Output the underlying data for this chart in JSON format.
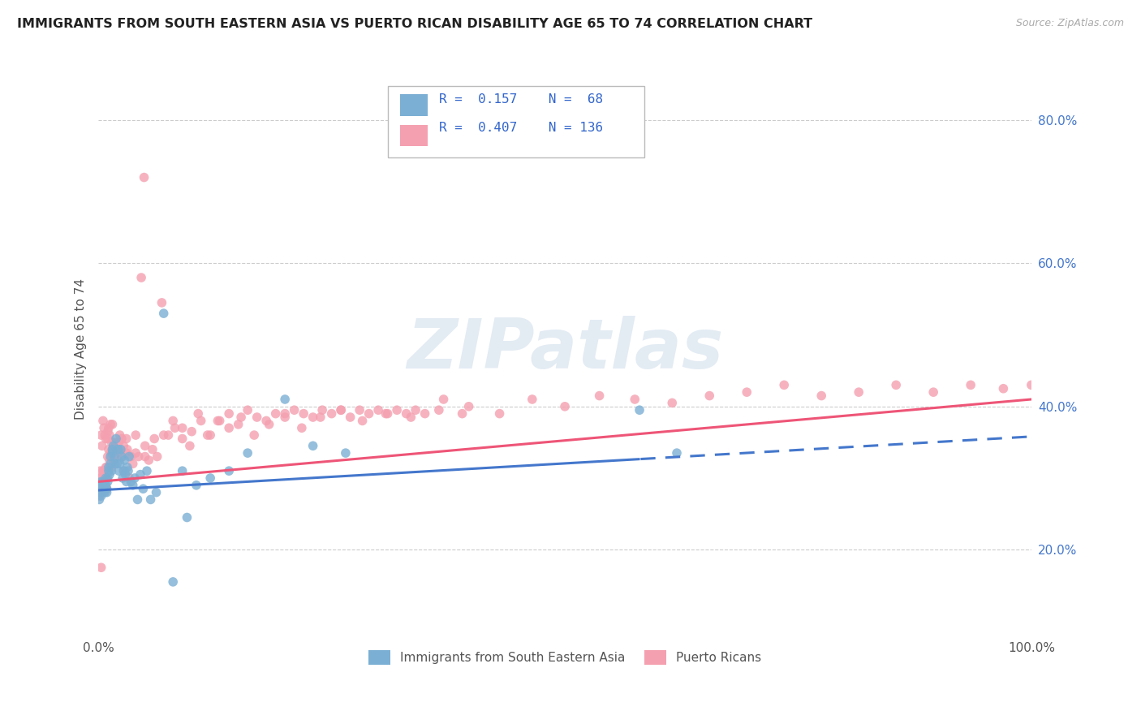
{
  "title": "IMMIGRANTS FROM SOUTH EASTERN ASIA VS PUERTO RICAN DISABILITY AGE 65 TO 74 CORRELATION CHART",
  "source": "Source: ZipAtlas.com",
  "ylabel": "Disability Age 65 to 74",
  "legend1_label": "Immigrants from South Eastern Asia",
  "legend2_label": "Puerto Ricans",
  "r1": 0.157,
  "n1": 68,
  "r2": 0.407,
  "n2": 136,
  "color_blue": "#7BAFD4",
  "color_pink": "#F4A0B0",
  "color_blue_line": "#4477CC",
  "color_pink_line": "#EE5577",
  "watermark": "ZIPatlas",
  "xlim": [
    0.0,
    1.0
  ],
  "ylim": [
    0.08,
    0.88
  ],
  "yticks": [
    0.2,
    0.4,
    0.6,
    0.8
  ],
  "ytick_labels": [
    "20.0%",
    "40.0%",
    "60.0%",
    "80.0%"
  ],
  "blue_line_start": 0.0,
  "blue_line_split": 0.58,
  "blue_line_end": 1.0,
  "blue_intercept": 0.283,
  "blue_slope": 0.075,
  "pink_intercept": 0.295,
  "pink_slope": 0.115,
  "blue_scatter_x": [
    0.001,
    0.001,
    0.002,
    0.002,
    0.003,
    0.003,
    0.004,
    0.004,
    0.005,
    0.005,
    0.006,
    0.006,
    0.007,
    0.007,
    0.008,
    0.008,
    0.009,
    0.009,
    0.01,
    0.01,
    0.011,
    0.011,
    0.012,
    0.013,
    0.013,
    0.014,
    0.015,
    0.015,
    0.016,
    0.017,
    0.018,
    0.019,
    0.02,
    0.021,
    0.022,
    0.023,
    0.024,
    0.025,
    0.026,
    0.027,
    0.028,
    0.029,
    0.03,
    0.031,
    0.032,
    0.033,
    0.035,
    0.037,
    0.039,
    0.042,
    0.045,
    0.048,
    0.052,
    0.056,
    0.062,
    0.07,
    0.08,
    0.09,
    0.105,
    0.12,
    0.14,
    0.16,
    0.2,
    0.23,
    0.265,
    0.58,
    0.62,
    0.095
  ],
  "blue_scatter_y": [
    0.27,
    0.28,
    0.29,
    0.285,
    0.295,
    0.275,
    0.285,
    0.29,
    0.28,
    0.295,
    0.285,
    0.29,
    0.28,
    0.295,
    0.29,
    0.3,
    0.28,
    0.285,
    0.295,
    0.3,
    0.315,
    0.31,
    0.305,
    0.32,
    0.33,
    0.31,
    0.34,
    0.335,
    0.345,
    0.33,
    0.32,
    0.355,
    0.32,
    0.34,
    0.31,
    0.32,
    0.34,
    0.33,
    0.3,
    0.31,
    0.325,
    0.305,
    0.295,
    0.315,
    0.31,
    0.33,
    0.295,
    0.29,
    0.3,
    0.27,
    0.305,
    0.285,
    0.31,
    0.27,
    0.28,
    0.53,
    0.155,
    0.31,
    0.29,
    0.3,
    0.31,
    0.335,
    0.41,
    0.345,
    0.335,
    0.395,
    0.335,
    0.245
  ],
  "pink_scatter_x": [
    0.001,
    0.001,
    0.002,
    0.002,
    0.002,
    0.003,
    0.003,
    0.003,
    0.004,
    0.004,
    0.004,
    0.005,
    0.005,
    0.005,
    0.006,
    0.006,
    0.006,
    0.007,
    0.007,
    0.007,
    0.008,
    0.008,
    0.008,
    0.009,
    0.009,
    0.01,
    0.01,
    0.011,
    0.011,
    0.012,
    0.012,
    0.013,
    0.013,
    0.014,
    0.014,
    0.015,
    0.015,
    0.016,
    0.017,
    0.018,
    0.019,
    0.02,
    0.021,
    0.022,
    0.023,
    0.024,
    0.025,
    0.026,
    0.027,
    0.028,
    0.03,
    0.031,
    0.033,
    0.035,
    0.037,
    0.04,
    0.043,
    0.046,
    0.05,
    0.054,
    0.058,
    0.063,
    0.068,
    0.075,
    0.082,
    0.09,
    0.098,
    0.107,
    0.117,
    0.128,
    0.14,
    0.153,
    0.167,
    0.183,
    0.2,
    0.218,
    0.238,
    0.26,
    0.283,
    0.308,
    0.335,
    0.365,
    0.397,
    0.43,
    0.465,
    0.5,
    0.537,
    0.575,
    0.615,
    0.655,
    0.695,
    0.735,
    0.775,
    0.815,
    0.855,
    0.895,
    0.935,
    0.97,
    1.0,
    0.01,
    0.02,
    0.03,
    0.04,
    0.05,
    0.06,
    0.07,
    0.08,
    0.09,
    0.1,
    0.11,
    0.12,
    0.13,
    0.14,
    0.15,
    0.16,
    0.17,
    0.18,
    0.19,
    0.2,
    0.21,
    0.22,
    0.23,
    0.24,
    0.25,
    0.26,
    0.27,
    0.28,
    0.29,
    0.3,
    0.31,
    0.32,
    0.33,
    0.34,
    0.35,
    0.37,
    0.39,
    0.049,
    0.003
  ],
  "pink_scatter_y": [
    0.275,
    0.285,
    0.28,
    0.3,
    0.31,
    0.285,
    0.3,
    0.36,
    0.29,
    0.295,
    0.345,
    0.28,
    0.31,
    0.38,
    0.295,
    0.31,
    0.37,
    0.29,
    0.305,
    0.36,
    0.3,
    0.315,
    0.355,
    0.285,
    0.315,
    0.33,
    0.365,
    0.34,
    0.37,
    0.325,
    0.36,
    0.335,
    0.375,
    0.315,
    0.35,
    0.34,
    0.375,
    0.325,
    0.32,
    0.35,
    0.34,
    0.33,
    0.335,
    0.35,
    0.36,
    0.34,
    0.355,
    0.33,
    0.345,
    0.31,
    0.355,
    0.34,
    0.3,
    0.33,
    0.32,
    0.335,
    0.33,
    0.58,
    0.345,
    0.325,
    0.34,
    0.33,
    0.545,
    0.36,
    0.37,
    0.355,
    0.345,
    0.39,
    0.36,
    0.38,
    0.37,
    0.385,
    0.36,
    0.375,
    0.39,
    0.37,
    0.385,
    0.395,
    0.38,
    0.39,
    0.385,
    0.395,
    0.4,
    0.39,
    0.41,
    0.4,
    0.415,
    0.41,
    0.405,
    0.415,
    0.42,
    0.43,
    0.415,
    0.42,
    0.43,
    0.42,
    0.43,
    0.425,
    0.43,
    0.355,
    0.34,
    0.335,
    0.36,
    0.33,
    0.355,
    0.36,
    0.38,
    0.37,
    0.365,
    0.38,
    0.36,
    0.38,
    0.39,
    0.375,
    0.395,
    0.385,
    0.38,
    0.39,
    0.385,
    0.395,
    0.39,
    0.385,
    0.395,
    0.39,
    0.395,
    0.385,
    0.395,
    0.39,
    0.395,
    0.39,
    0.395,
    0.39,
    0.395,
    0.39,
    0.41,
    0.39,
    0.72,
    0.175
  ]
}
